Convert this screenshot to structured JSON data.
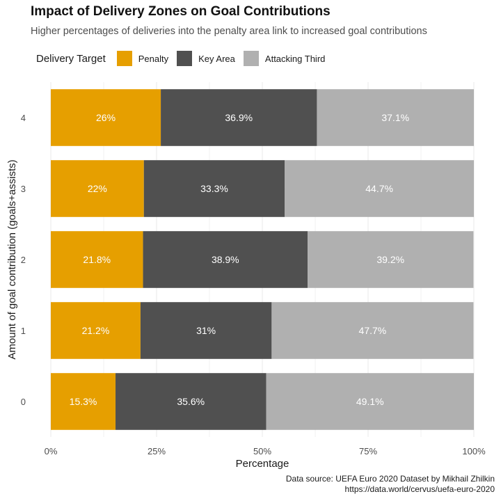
{
  "chart_data": {
    "type": "bar",
    "orientation": "horizontal",
    "stacked": true,
    "title": "Impact of Delivery Zones on Goal Contributions",
    "subtitle": "Higher percentages of deliveries into the penalty area link to increased goal contributions",
    "xlabel": "Percentage",
    "ylabel": "Amount of goal contribution (goals+assists)",
    "categories": [
      "0",
      "1",
      "2",
      "3",
      "4"
    ],
    "series": [
      {
        "name": "Penalty",
        "color": "#E69F00",
        "values": [
          15.3,
          21.2,
          21.8,
          22,
          26
        ],
        "labels": [
          "15.3%",
          "21.2%",
          "21.8%",
          "22%",
          "26%"
        ]
      },
      {
        "name": "Key Area",
        "color": "#505050",
        "values": [
          35.6,
          31,
          38.9,
          33.3,
          36.9
        ],
        "labels": [
          "35.6%",
          "31%",
          "38.9%",
          "33.3%",
          "36.9%"
        ]
      },
      {
        "name": "Attacking Third",
        "color": "#B0B0B0",
        "values": [
          49.1,
          47.7,
          39.2,
          44.7,
          37.1
        ],
        "labels": [
          "49.1%",
          "47.7%",
          "39.2%",
          "44.7%",
          "37.1%"
        ]
      }
    ],
    "xlim": [
      0,
      100
    ],
    "xticks": [
      0,
      25,
      50,
      75,
      100
    ],
    "xtick_labels": [
      "0%",
      "25%",
      "50%",
      "75%",
      "100%"
    ],
    "legend": {
      "title": "Delivery Target",
      "position": "top-left"
    },
    "grid": true
  },
  "caption": {
    "line1": "Data source: UEFA Euro 2020 Dataset by Mikhail Zhilkin",
    "line2": "https://data.world/cervus/uefa-euro-2020"
  }
}
